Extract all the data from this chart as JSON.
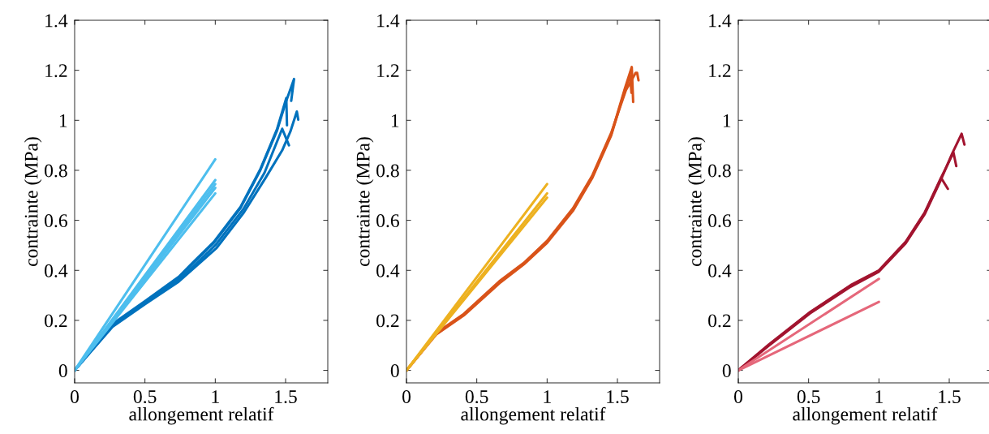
{
  "chart_data": [
    {
      "type": "line",
      "xlabel": "allongement relatif",
      "ylabel": "contrainte (MPa)",
      "xlim": [
        0,
        1.8
      ],
      "ylim": [
        -0.05,
        1.4
      ],
      "xticks": [
        0,
        0.5,
        1,
        1.5
      ],
      "yticks": [
        0,
        0.2,
        0.4,
        0.6,
        0.8,
        1,
        1.2,
        1.4
      ],
      "grid": false,
      "legend": false,
      "series": [
        {
          "color": "#0072bd",
          "x": [
            0,
            0.27,
            0.5,
            0.74,
            0.835,
            0.99,
            1.18,
            1.32,
            1.44,
            1.505,
            1.51
          ],
          "values": [
            0,
            0.186,
            0.277,
            0.374,
            0.428,
            0.514,
            0.654,
            0.804,
            0.966,
            1.089,
            0.98
          ]
        },
        {
          "color": "#0072bd",
          "x": [
            0,
            0.27,
            0.5,
            0.74,
            0.835,
            0.99,
            1.18,
            1.32,
            1.44,
            1.5,
            1.56,
            1.54
          ],
          "values": [
            0,
            0.18,
            0.27,
            0.37,
            0.425,
            0.51,
            0.65,
            0.8,
            0.96,
            1.07,
            1.165,
            1.078
          ]
        },
        {
          "color": "#0072bd",
          "x": [
            0,
            0.27,
            0.5,
            0.74,
            1.01,
            1.204,
            1.36,
            1.476,
            1.534,
            1.58,
            1.59
          ],
          "values": [
            0,
            0.175,
            0.265,
            0.355,
            0.49,
            0.632,
            0.772,
            0.88,
            0.955,
            1.035,
            1.003
          ]
        },
        {
          "color": "#0072bd",
          "x": [
            0,
            0.27,
            0.5,
            0.74,
            1.0,
            1.2,
            1.35,
            1.476,
            1.524
          ],
          "values": [
            0,
            0.18,
            0.268,
            0.36,
            0.5,
            0.645,
            0.79,
            0.966,
            0.9
          ]
        },
        {
          "color": "#4dbeee",
          "x": [
            0,
            1
          ],
          "values": [
            0,
            0.844
          ]
        },
        {
          "color": "#4dbeee",
          "x": [
            0,
            1
          ],
          "values": [
            0,
            0.761
          ]
        },
        {
          "color": "#4dbeee",
          "x": [
            0,
            1
          ],
          "values": [
            0,
            0.745
          ]
        },
        {
          "color": "#4dbeee",
          "x": [
            0,
            1
          ],
          "values": [
            0,
            0.73
          ]
        },
        {
          "color": "#4dbeee",
          "x": [
            0,
            1
          ],
          "values": [
            0,
            0.708
          ]
        }
      ]
    },
    {
      "type": "line",
      "xlabel": "allongement relatif",
      "ylabel": "contrainte (MPa)",
      "xlim": [
        0,
        1.8
      ],
      "ylim": [
        -0.05,
        1.4
      ],
      "xticks": [
        0,
        0.5,
        1,
        1.5
      ],
      "yticks": [
        0,
        0.2,
        0.4,
        0.6,
        0.8,
        1,
        1.2,
        1.4
      ],
      "grid": false,
      "legend": false,
      "series": [
        {
          "color": "#d95319",
          "x": [
            0,
            0.214,
            0.408,
            0.66,
            0.835,
            1.0,
            1.184,
            1.32,
            1.456,
            1.553,
            1.602,
            1.612
          ],
          "values": [
            0,
            0.148,
            0.224,
            0.353,
            0.428,
            0.514,
            0.643,
            0.772,
            0.944,
            1.127,
            1.213,
            1.073
          ]
        },
        {
          "color": "#d95319",
          "x": [
            0,
            0.214,
            0.408,
            0.66,
            0.835,
            1.0,
            1.184,
            1.32,
            1.456,
            1.553,
            1.59,
            1.6
          ],
          "values": [
            0,
            0.145,
            0.22,
            0.348,
            0.424,
            0.51,
            0.638,
            0.768,
            0.94,
            1.12,
            1.18,
            1.11
          ]
        },
        {
          "color": "#d95319",
          "x": [
            0,
            0.214,
            0.408,
            0.66,
            0.835,
            1.0,
            1.184,
            1.32,
            1.456,
            1.56,
            1.63,
            1.64,
            1.65
          ],
          "values": [
            0,
            0.15,
            0.226,
            0.356,
            0.43,
            0.518,
            0.648,
            0.778,
            0.95,
            1.12,
            1.19,
            1.19,
            1.16
          ]
        },
        {
          "color": "#edb120",
          "x": [
            0,
            1
          ],
          "values": [
            0,
            0.745
          ]
        },
        {
          "color": "#edb120",
          "x": [
            0,
            1
          ],
          "values": [
            0,
            0.708
          ]
        },
        {
          "color": "#edb120",
          "x": [
            0,
            1
          ],
          "values": [
            0,
            0.691
          ]
        }
      ]
    },
    {
      "type": "line",
      "xlabel": "allongement relatif",
      "ylabel": "contrainte (MPa)",
      "xlim": [
        0,
        1.8
      ],
      "ylim": [
        -0.05,
        1.4
      ],
      "xticks": [
        0,
        0.5,
        1,
        1.5
      ],
      "yticks": [
        0,
        0.2,
        0.4,
        0.6,
        0.8,
        1,
        1.2,
        1.4
      ],
      "grid": false,
      "legend": false,
      "series": [
        {
          "color": "#a2142f",
          "x": [
            0,
            0.219,
            0.51,
            0.8,
            1.0,
            1.19,
            1.326,
            1.443,
            1.49
          ],
          "values": [
            0,
            0.102,
            0.231,
            0.339,
            0.398,
            0.511,
            0.629,
            0.769,
            0.726
          ]
        },
        {
          "color": "#a2142f",
          "x": [
            0,
            0.219,
            0.51,
            0.8,
            1.0,
            1.19,
            1.326,
            1.443,
            1.52,
            1.588,
            1.608
          ],
          "values": [
            0,
            0.1,
            0.228,
            0.335,
            0.395,
            0.508,
            0.625,
            0.765,
            0.866,
            0.946,
            0.903
          ]
        },
        {
          "color": "#a2142f",
          "x": [
            0,
            0.219,
            0.51,
            0.8,
            1.0,
            1.19,
            1.326,
            1.443,
            1.53,
            1.55
          ],
          "values": [
            0,
            0.104,
            0.233,
            0.341,
            0.4,
            0.514,
            0.632,
            0.772,
            0.871,
            0.817
          ]
        },
        {
          "color": "#e5677a",
          "x": [
            0,
            1
          ],
          "values": [
            0,
            0.366
          ]
        },
        {
          "color": "#e5677a",
          "x": [
            0,
            1
          ],
          "values": [
            0,
            0.274
          ]
        }
      ]
    }
  ]
}
